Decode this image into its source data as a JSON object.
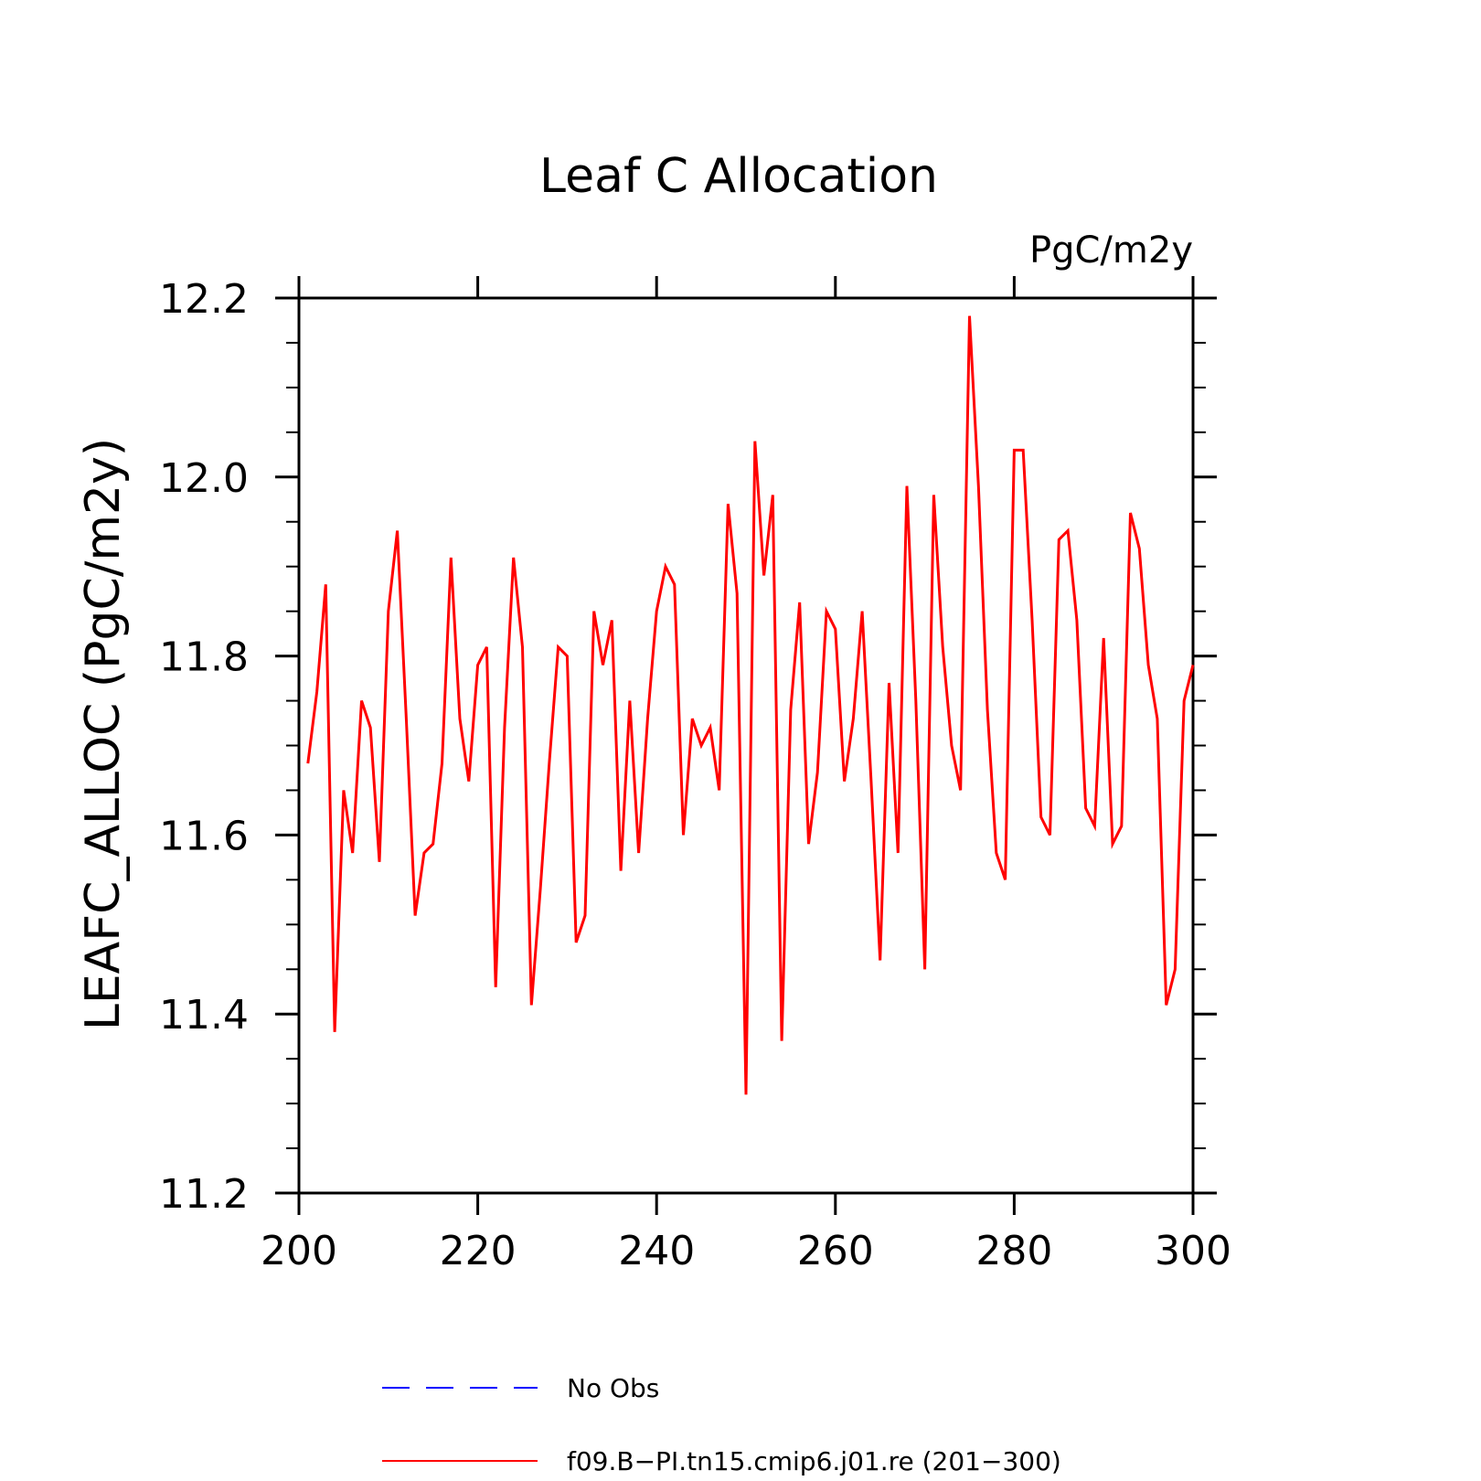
{
  "chart_data": {
    "type": "line",
    "title": "Leaf C Allocation",
    "units_label": "PgC/m2y",
    "ylabel": "LEAFC_ALLOC  (PgC/m2y)",
    "xlabel": "",
    "xlim": [
      200,
      300
    ],
    "ylim": [
      11.2,
      12.2
    ],
    "x_ticks": [
      200,
      220,
      240,
      260,
      280,
      300
    ],
    "x_tick_labels": [
      "200",
      "220",
      "240",
      "260",
      "280",
      "300"
    ],
    "y_ticks": [
      11.2,
      11.4,
      11.6,
      11.8,
      12.0,
      12.2
    ],
    "y_tick_labels": [
      "11.2",
      "11.4",
      "11.6",
      "11.8",
      "12.0",
      "12.2"
    ],
    "grid": false,
    "legend": [
      {
        "label": "No Obs",
        "color": "#0000ff",
        "dash": true
      },
      {
        "label": "f09.B−PI.tn15.cmip6.j01.re (201−300)",
        "color": "#ff0000",
        "dash": false
      }
    ],
    "series": [
      {
        "name": "f09.B−PI.tn15.cmip6.j01.re (201−300)",
        "color": "#ff0000",
        "x_start": 201,
        "values": [
          11.68,
          11.76,
          11.88,
          11.38,
          11.65,
          11.58,
          11.75,
          11.72,
          11.57,
          11.85,
          11.94,
          11.73,
          11.51,
          11.58,
          11.59,
          11.68,
          11.91,
          11.73,
          11.66,
          11.79,
          11.81,
          11.43,
          11.72,
          11.91,
          11.81,
          11.41,
          11.54,
          11.68,
          11.81,
          11.8,
          11.48,
          11.51,
          11.85,
          11.79,
          11.84,
          11.56,
          11.75,
          11.58,
          11.73,
          11.85,
          11.9,
          11.88,
          11.6,
          11.73,
          11.7,
          11.72,
          11.65,
          11.97,
          11.87,
          11.31,
          12.04,
          11.89,
          11.98,
          11.37,
          11.74,
          11.86,
          11.59,
          11.67,
          11.85,
          11.83,
          11.66,
          11.73,
          11.85,
          11.66,
          11.46,
          11.77,
          11.58,
          11.99,
          11.75,
          11.45,
          11.98,
          11.81,
          11.7,
          11.65,
          12.18,
          11.99,
          11.74,
          11.58,
          11.55,
          12.03,
          12.03,
          11.84,
          11.62,
          11.6,
          11.93,
          11.94,
          11.84,
          11.63,
          11.61,
          11.82,
          11.59,
          11.61,
          11.96,
          11.92,
          11.79,
          11.73,
          11.41,
          11.45,
          11.75,
          11.79
        ]
      }
    ]
  }
}
